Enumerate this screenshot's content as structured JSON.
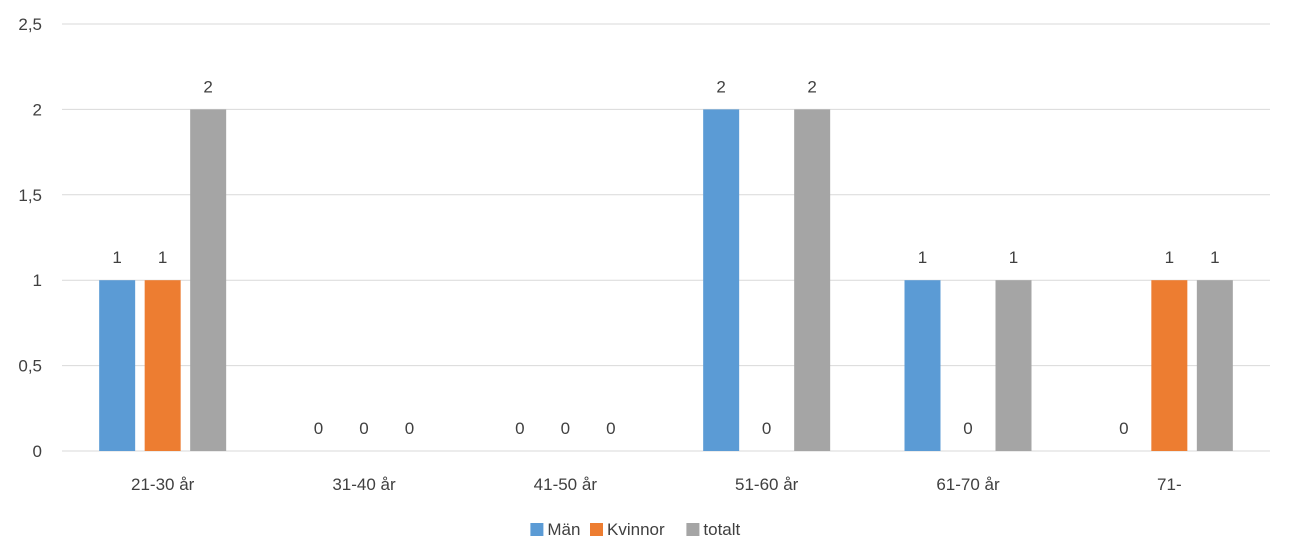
{
  "chart_data": {
    "type": "bar",
    "categories": [
      "21-30 år",
      "31-40 år",
      "41-50 år",
      "51-60 år",
      "61-70 år",
      "71-"
    ],
    "series": [
      {
        "name": "Män",
        "values": [
          1,
          0,
          0,
          2,
          1,
          0
        ],
        "color": "#5b9bd5"
      },
      {
        "name": "Kvinnor",
        "values": [
          1,
          0,
          0,
          0,
          0,
          1
        ],
        "color": "#ed7d31"
      },
      {
        "name": "totalt",
        "values": [
          2,
          0,
          0,
          2,
          1,
          1
        ],
        "color": "#a5a5a5"
      }
    ],
    "y_ticks": [
      "0",
      "0,5",
      "1",
      "1,5",
      "2",
      "2,5"
    ],
    "ylim": [
      0,
      2.5
    ],
    "title": "",
    "xlabel": "",
    "ylabel": "",
    "grid": true,
    "legend_position": "bottom",
    "data_labels": true
  }
}
